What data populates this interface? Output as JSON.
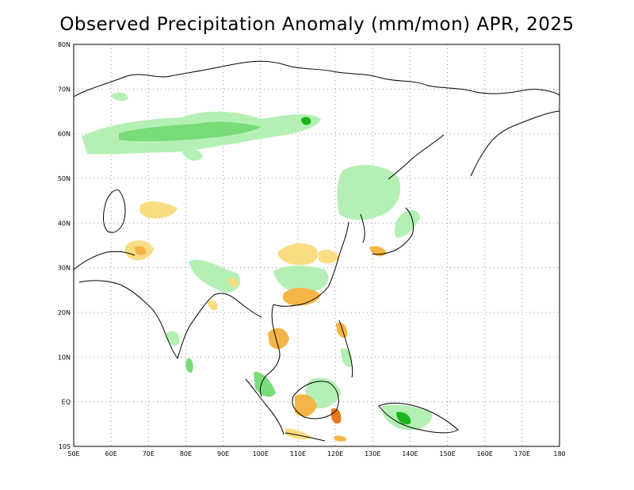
{
  "map": {
    "title": "Observed Precipitation Anomaly (mm/mon) APR, 2025",
    "lon_labels": [
      "50E",
      "60E",
      "70E",
      "80E",
      "90E",
      "100E",
      "110E",
      "120E",
      "130E",
      "140E",
      "150E",
      "160E",
      "170E",
      "180"
    ],
    "lat_labels": [
      "10S",
      "EQ",
      "10N",
      "20N",
      "30N",
      "40N",
      "50N",
      "60N",
      "70N",
      "80N"
    ],
    "extent": {
      "lon_min": 50,
      "lon_max": 180,
      "lat_min": -10,
      "lat_max": 80
    },
    "colors": {
      "wet_light": "#b4f0b4",
      "wet_mid": "#78dc78",
      "wet_strong": "#1eb41e",
      "dry_light": "#fadc82",
      "dry_mid": "#f5b446",
      "dry_strong": "#e6781e",
      "coast": "#000000",
      "grid": "#999999"
    }
  }
}
